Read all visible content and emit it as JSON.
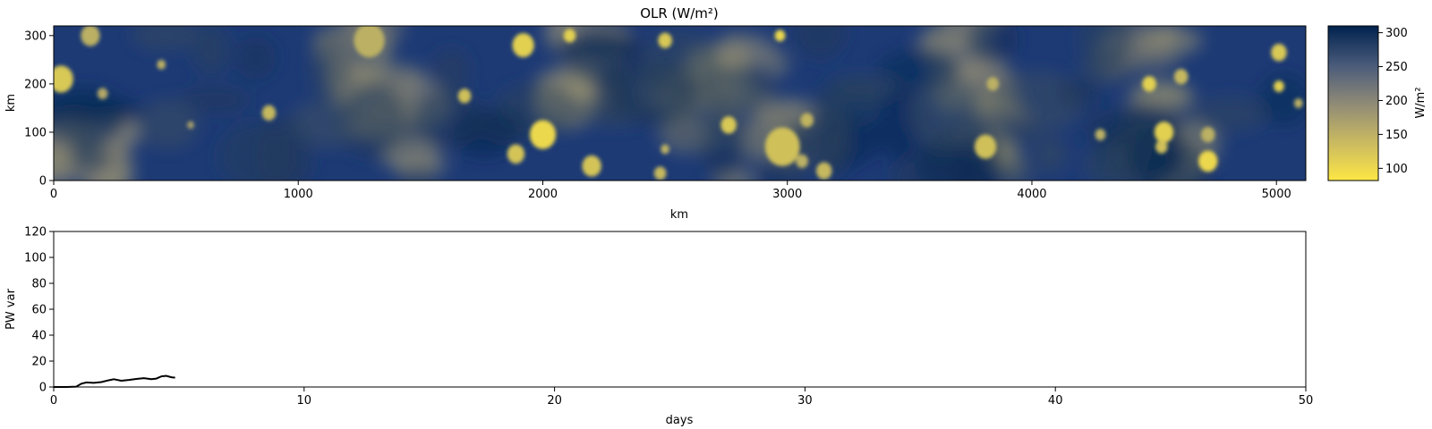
{
  "chart_data": [
    {
      "type": "heatmap",
      "title": "OLR (W/m²)",
      "xlabel": "km",
      "ylabel": "km",
      "xlim": [
        0,
        5120
      ],
      "ylim": [
        0,
        320
      ],
      "x_ticks": [
        0,
        1000,
        2000,
        3000,
        4000,
        5000
      ],
      "y_ticks": [
        0,
        100,
        200,
        300
      ],
      "colorbar": {
        "label": "W/m²",
        "range": [
          82,
          310
        ],
        "ticks": [
          100,
          150,
          200,
          250,
          300
        ],
        "colors": [
          "#fde745",
          "#8f8a77",
          "#00224e"
        ]
      },
      "cells": [
        {
          "x": 30,
          "y": 210,
          "r": 28,
          "v": 120
        },
        {
          "x": 150,
          "y": 300,
          "r": 22,
          "v": 150
        },
        {
          "x": 200,
          "y": 180,
          "r": 12,
          "v": 160
        },
        {
          "x": 440,
          "y": 240,
          "r": 10,
          "v": 150
        },
        {
          "x": 560,
          "y": 115,
          "r": 8,
          "v": 170
        },
        {
          "x": 880,
          "y": 140,
          "r": 16,
          "v": 140
        },
        {
          "x": 1290,
          "y": 290,
          "r": 35,
          "v": 150
        },
        {
          "x": 1680,
          "y": 175,
          "r": 15,
          "v": 130
        },
        {
          "x": 1920,
          "y": 280,
          "r": 25,
          "v": 110
        },
        {
          "x": 2000,
          "y": 95,
          "r": 30,
          "v": 100
        },
        {
          "x": 1890,
          "y": 55,
          "r": 20,
          "v": 125
        },
        {
          "x": 2110,
          "y": 300,
          "r": 14,
          "v": 110
        },
        {
          "x": 2200,
          "y": 30,
          "r": 22,
          "v": 125
        },
        {
          "x": 2500,
          "y": 290,
          "r": 16,
          "v": 120
        },
        {
          "x": 2500,
          "y": 65,
          "r": 10,
          "v": 150
        },
        {
          "x": 2480,
          "y": 15,
          "r": 14,
          "v": 140
        },
        {
          "x": 2760,
          "y": 115,
          "r": 18,
          "v": 120
        },
        {
          "x": 2980,
          "y": 70,
          "r": 40,
          "v": 130
        },
        {
          "x": 2970,
          "y": 300,
          "r": 12,
          "v": 100
        },
        {
          "x": 3080,
          "y": 125,
          "r": 15,
          "v": 145
        },
        {
          "x": 3060,
          "y": 40,
          "r": 14,
          "v": 150
        },
        {
          "x": 3150,
          "y": 20,
          "r": 18,
          "v": 140
        },
        {
          "x": 3810,
          "y": 70,
          "r": 25,
          "v": 130
        },
        {
          "x": 3840,
          "y": 200,
          "r": 14,
          "v": 150
        },
        {
          "x": 4280,
          "y": 95,
          "r": 12,
          "v": 150
        },
        {
          "x": 4480,
          "y": 200,
          "r": 16,
          "v": 110
        },
        {
          "x": 4540,
          "y": 100,
          "r": 22,
          "v": 110
        },
        {
          "x": 4530,
          "y": 70,
          "r": 14,
          "v": 130
        },
        {
          "x": 4610,
          "y": 215,
          "r": 16,
          "v": 140
        },
        {
          "x": 4720,
          "y": 40,
          "r": 22,
          "v": 100
        },
        {
          "x": 4720,
          "y": 95,
          "r": 16,
          "v": 150
        },
        {
          "x": 5010,
          "y": 265,
          "r": 18,
          "v": 120
        },
        {
          "x": 5010,
          "y": 195,
          "r": 12,
          "v": 110
        },
        {
          "x": 5090,
          "y": 160,
          "r": 10,
          "v": 150
        }
      ]
    },
    {
      "type": "line",
      "title": "",
      "xlabel": "days",
      "ylabel": "PW var",
      "xlim": [
        0,
        50
      ],
      "ylim": [
        0,
        120
      ],
      "x_ticks": [
        0,
        10,
        20,
        30,
        40,
        50
      ],
      "y_ticks": [
        0,
        20,
        40,
        60,
        80,
        100,
        120
      ],
      "series": [
        {
          "color": "#000000",
          "x": [
            0,
            0.5,
            0.9,
            1.1,
            1.3,
            1.6,
            1.9,
            2.2,
            2.4,
            2.7,
            3.0,
            3.3,
            3.6,
            3.9,
            4.1,
            4.3,
            4.5,
            4.7,
            4.85
          ],
          "y": [
            0,
            0,
            0.3,
            2.5,
            3.5,
            3.2,
            3.8,
            5.2,
            6.0,
            4.8,
            5.4,
            6.2,
            6.8,
            6.0,
            6.5,
            8.2,
            8.6,
            7.5,
            7.2
          ]
        }
      ]
    }
  ]
}
